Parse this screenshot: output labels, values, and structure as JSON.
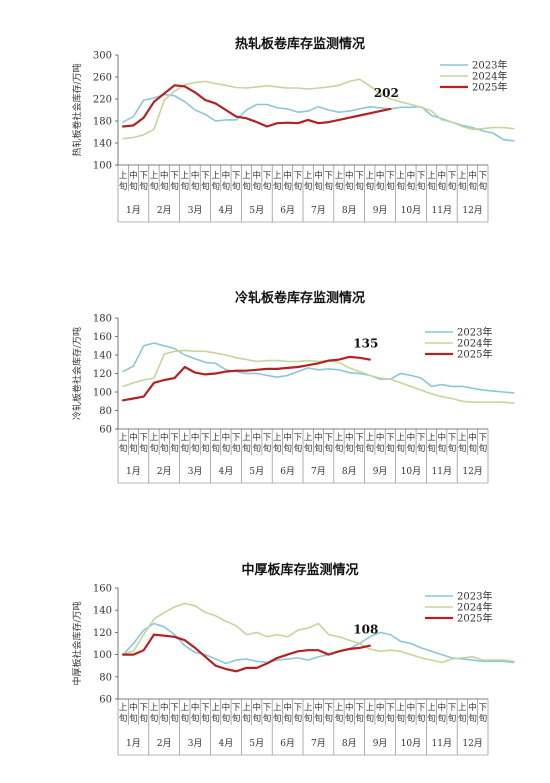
{
  "page": {
    "background": "#ffffff"
  },
  "sub_labels": [
    "上旬",
    "中旬",
    "下旬"
  ],
  "chart_data": [
    {
      "type": "line",
      "title": "热轧板卷库存监测情况",
      "ylabel": "热轧板卷社会库存/万吨",
      "ylim": [
        100,
        300
      ],
      "yticks": [
        100,
        140,
        180,
        220,
        260,
        300
      ],
      "months": [
        "1月",
        "2月",
        "3月",
        "4月",
        "5月",
        "6月",
        "7月",
        "8月",
        "9月",
        "10月",
        "11月",
        "12月"
      ],
      "annotation": {
        "text": "202",
        "series": "2025年"
      },
      "series": [
        {
          "name": "2023年",
          "color": "#8cc6d9",
          "values": [
            178,
            188,
            218,
            222,
            228,
            226,
            215,
            200,
            192,
            180,
            182,
            182,
            200,
            210,
            210,
            204,
            202,
            196,
            198,
            206,
            200,
            196,
            198,
            202,
            206,
            204,
            202,
            205,
            205,
            206,
            190,
            184,
            178,
            172,
            168,
            162,
            158,
            146,
            144
          ]
        },
        {
          "name": "2024年",
          "color": "#c3d69b",
          "values": [
            148,
            150,
            155,
            165,
            218,
            234,
            246,
            250,
            252,
            248,
            245,
            241,
            240,
            242,
            244,
            242,
            240,
            240,
            238,
            240,
            242,
            245,
            252,
            256,
            244,
            230,
            220,
            215,
            210,
            205,
            198,
            182,
            178,
            170,
            165,
            166,
            168,
            168,
            166
          ]
        },
        {
          "name": "2025年",
          "color": "#b22222",
          "values": [
            170,
            172,
            186,
            215,
            230,
            245,
            243,
            232,
            218,
            212,
            200,
            188,
            185,
            178,
            170,
            176,
            177,
            176,
            182,
            176,
            178,
            182,
            186,
            190,
            194,
            198,
            202
          ]
        }
      ]
    },
    {
      "type": "line",
      "title": "冷轧板卷库存监测情况",
      "ylabel": "冷轧板卷社会库存/万吨",
      "ylim": [
        60,
        180
      ],
      "yticks": [
        60,
        80,
        100,
        120,
        140,
        160,
        180
      ],
      "months": [
        "1月",
        "2月",
        "3月",
        "4月",
        "5月",
        "6月",
        "7月",
        "8月",
        "9月",
        "10月",
        "11月",
        "12月"
      ],
      "annotation": {
        "text": "135",
        "series": "2025年"
      },
      "series": [
        {
          "name": "2023年",
          "color": "#8cc6d9",
          "values": [
            122,
            128,
            150,
            153,
            150,
            147,
            140,
            136,
            132,
            131,
            124,
            122,
            120,
            120,
            118,
            116,
            118,
            122,
            126,
            124,
            125,
            124,
            121,
            120,
            118,
            114,
            114,
            120,
            118,
            115,
            106,
            108,
            106,
            106,
            104,
            102,
            101,
            100,
            99
          ]
        },
        {
          "name": "2024年",
          "color": "#c3d69b",
          "values": [
            106,
            110,
            113,
            115,
            141,
            144,
            145,
            144,
            144,
            142,
            140,
            137,
            135,
            133,
            134,
            134,
            133,
            133,
            134,
            133,
            134,
            132,
            126,
            122,
            118,
            115,
            114,
            110,
            106,
            102,
            98,
            95,
            93,
            90,
            89,
            89,
            89,
            89,
            88
          ]
        },
        {
          "name": "2025年",
          "color": "#b22222",
          "values": [
            91,
            93,
            95,
            110,
            113,
            115,
            127,
            121,
            119,
            120,
            122,
            123,
            123,
            124,
            125,
            125,
            126,
            127,
            129,
            131,
            134,
            135,
            138,
            137,
            135
          ]
        }
      ]
    },
    {
      "type": "line",
      "title": "中厚板库存监测情况",
      "ylabel": "中厚板社会库存/万吨",
      "ylim": [
        60,
        160
      ],
      "yticks": [
        60,
        80,
        100,
        120,
        140,
        160
      ],
      "months": [
        "1月",
        "2月",
        "3月",
        "4月",
        "5月",
        "6月",
        "7月",
        "8月",
        "9月",
        "10月",
        "11月",
        "12月"
      ],
      "annotation": {
        "text": "108",
        "series": "2025年"
      },
      "series": [
        {
          "name": "2023年",
          "color": "#8cc6d9",
          "values": [
            100,
            110,
            122,
            128,
            125,
            118,
            108,
            102,
            100,
            96,
            92,
            95,
            96,
            94,
            93,
            95,
            96,
            97,
            95,
            98,
            100,
            103,
            105,
            110,
            116,
            120,
            118,
            112,
            110,
            106,
            103,
            100,
            97,
            96,
            95,
            94,
            94,
            94,
            93
          ]
        },
        {
          "name": "2024年",
          "color": "#c3d69b",
          "values": [
            101,
            103,
            118,
            132,
            138,
            143,
            146,
            144,
            138,
            135,
            130,
            126,
            118,
            120,
            116,
            118,
            116,
            122,
            124,
            128,
            118,
            116,
            113,
            110,
            105,
            103,
            104,
            103,
            100,
            97,
            95,
            93,
            96,
            97,
            98,
            95,
            95,
            95,
            94
          ]
        },
        {
          "name": "2025年",
          "color": "#b22222",
          "values": [
            100,
            100,
            104,
            118,
            117,
            116,
            113,
            106,
            98,
            90,
            87,
            85,
            88,
            88,
            92,
            97,
            100,
            103,
            104,
            104,
            100,
            103,
            105,
            106,
            108
          ]
        }
      ]
    }
  ]
}
